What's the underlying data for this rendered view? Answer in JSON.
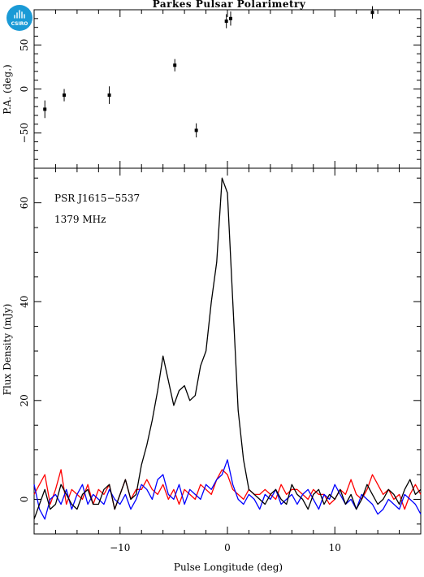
{
  "logo": {
    "text": "CSIRO",
    "color": "#1a9ad6"
  },
  "title": "Parkes Pulsar Polarimetry",
  "source": "PSR J1615−5537",
  "frequency": "1379 MHz",
  "chart_data": [
    {
      "type": "scatter",
      "panel": "position-angle",
      "xlabel": "",
      "ylabel": "P.A. (deg.)",
      "xlim": [
        -18,
        18
      ],
      "ylim": [
        -90,
        90
      ],
      "yticks": [
        -50,
        0,
        50
      ],
      "xticks": [
        -10,
        0,
        10
      ],
      "points": [
        {
          "x": -17.0,
          "y": -23,
          "err": 10
        },
        {
          "x": -15.2,
          "y": -7,
          "err": 7
        },
        {
          "x": -11.0,
          "y": -7,
          "err": 10
        },
        {
          "x": -4.9,
          "y": 27,
          "err": 7
        },
        {
          "x": -2.9,
          "y": -47,
          "err": 8
        },
        {
          "x": -0.1,
          "y": 77,
          "err": 8
        },
        {
          "x": 0.3,
          "y": 80,
          "err": 8
        },
        {
          "x": 13.5,
          "y": 87,
          "err": 7
        }
      ]
    },
    {
      "type": "line",
      "panel": "flux-density",
      "xlabel": "Pulse Longitude (deg)",
      "ylabel": "Flux Density (mJy)",
      "xlim": [
        -18,
        18
      ],
      "ylim": [
        -7,
        67
      ],
      "yticks": [
        0,
        20,
        40,
        60
      ],
      "xticks": [
        -10,
        0,
        10
      ],
      "x": [
        -18.0,
        -17.5,
        -17.0,
        -16.5,
        -16.0,
        -15.5,
        -15.0,
        -14.5,
        -14.0,
        -13.5,
        -13.0,
        -12.5,
        -12.0,
        -11.5,
        -11.0,
        -10.5,
        -10.0,
        -9.5,
        -9.0,
        -8.5,
        -8.0,
        -7.5,
        -7.0,
        -6.5,
        -6.0,
        -5.5,
        -5.0,
        -4.5,
        -4.0,
        -3.5,
        -3.0,
        -2.5,
        -2.0,
        -1.5,
        -1.0,
        -0.5,
        0.0,
        0.5,
        1.0,
        1.5,
        2.0,
        2.5,
        3.0,
        3.5,
        4.0,
        4.5,
        5.0,
        5.5,
        6.0,
        6.5,
        7.0,
        7.5,
        8.0,
        8.5,
        9.0,
        9.5,
        10.0,
        10.5,
        11.0,
        11.5,
        12.0,
        12.5,
        13.0,
        13.5,
        14.0,
        14.5,
        15.0,
        15.5,
        16.0,
        16.5,
        17.0,
        17.5,
        18.0
      ],
      "series": [
        {
          "color": "#000000",
          "values": [
            -4,
            -1,
            2,
            -2,
            -1,
            3,
            1,
            -1,
            -2,
            1,
            2,
            -1,
            -1,
            2,
            3,
            -2,
            1,
            4,
            0,
            1,
            7,
            11,
            16,
            22,
            29,
            24,
            19,
            22,
            23,
            20,
            21,
            27,
            30,
            40,
            48,
            65,
            62,
            40,
            18,
            8,
            2,
            1,
            0,
            -1,
            1,
            2,
            0,
            -1,
            3,
            1,
            0,
            -2,
            1,
            2,
            -1,
            1,
            0,
            2,
            -1,
            1,
            -2,
            0,
            3,
            1,
            -1,
            0,
            2,
            1,
            -1,
            2,
            4,
            1,
            2
          ]
        },
        {
          "color": "#ff0000",
          "values": [
            1,
            3,
            5,
            -1,
            2,
            6,
            -1,
            2,
            1,
            0,
            3,
            -1,
            2,
            1,
            3,
            -2,
            1,
            4,
            0,
            2,
            2,
            4,
            2,
            1,
            3,
            0,
            2,
            -1,
            2,
            1,
            0,
            3,
            2,
            1,
            4,
            6,
            5,
            2,
            1,
            0,
            2,
            1,
            1,
            2,
            1,
            0,
            3,
            1,
            2,
            2,
            1,
            0,
            2,
            1,
            1,
            -1,
            0,
            2,
            1,
            4,
            1,
            0,
            2,
            5,
            3,
            1,
            2,
            0,
            1,
            -2,
            1,
            3,
            1
          ]
        },
        {
          "color": "#0000ff",
          "values": [
            3,
            -2,
            -4,
            0,
            1,
            -1,
            2,
            -2,
            1,
            3,
            -1,
            1,
            0,
            -1,
            2,
            0,
            -1,
            1,
            -2,
            0,
            3,
            2,
            0,
            4,
            5,
            1,
            0,
            3,
            -1,
            2,
            1,
            0,
            3,
            2,
            4,
            5,
            8,
            3,
            0,
            -1,
            1,
            0,
            -2,
            1,
            0,
            2,
            -1,
            0,
            1,
            -1,
            1,
            2,
            0,
            -2,
            1,
            0,
            3,
            1,
            -1,
            0,
            -2,
            1,
            0,
            -1,
            -3,
            -2,
            0,
            -1,
            -2,
            1,
            0,
            -1,
            -3
          ]
        }
      ]
    }
  ]
}
